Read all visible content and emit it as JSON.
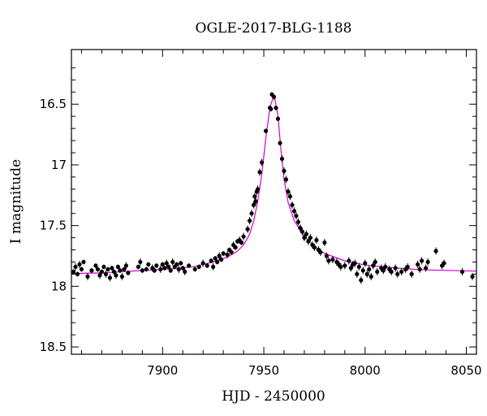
{
  "colors": {
    "model_line": "#d400d4",
    "points": "#000000"
  },
  "chart_data": {
    "type": "scatter",
    "title": "OGLE-2017-BLG-1188",
    "xlabel": "HJD - 2450000",
    "ylabel": "I magnitude",
    "xlim": [
      7855,
      8055
    ],
    "ylim": [
      18.56,
      16.05
    ],
    "y_inverted": true,
    "grid": false,
    "xticks": [
      7900,
      7950,
      8000,
      8050
    ],
    "xtick_labels": [
      "7900",
      "7950",
      "8000",
      "8050"
    ],
    "yticks": [
      16.5,
      17,
      17.5,
      18,
      18.5
    ],
    "ytick_labels": [
      "16.5",
      "17",
      "17.5",
      "18",
      "18.5"
    ],
    "series": [
      {
        "kind": "model",
        "points": [
          [
            7855,
            17.895
          ],
          [
            7870,
            17.89
          ],
          [
            7890,
            17.87
          ],
          [
            7905,
            17.855
          ],
          [
            7915,
            17.84
          ],
          [
            7925,
            17.8
          ],
          [
            7932,
            17.76
          ],
          [
            7937,
            17.71
          ],
          [
            7940,
            17.66
          ],
          [
            7943,
            17.57
          ],
          [
            7945,
            17.46
          ],
          [
            7947,
            17.3
          ],
          [
            7949,
            17.08
          ],
          [
            7951,
            16.78
          ],
          [
            7953,
            16.53
          ],
          [
            7954.5,
            16.45
          ],
          [
            7955.5,
            16.46
          ],
          [
            7957,
            16.6
          ],
          [
            7958.5,
            16.88
          ],
          [
            7960,
            17.12
          ],
          [
            7962,
            17.31
          ],
          [
            7965,
            17.46
          ],
          [
            7970,
            17.59
          ],
          [
            7975,
            17.67
          ],
          [
            7980,
            17.73
          ],
          [
            7990,
            17.79
          ],
          [
            8000,
            17.825
          ],
          [
            8015,
            17.85
          ],
          [
            8030,
            17.865
          ],
          [
            8055,
            17.875
          ]
        ]
      },
      {
        "kind": "data",
        "points": [
          [
            7856,
            17.88,
            0.02
          ],
          [
            7857,
            17.84,
            0.03
          ],
          [
            7858,
            17.9,
            0.02
          ],
          [
            7859,
            17.82,
            0.03
          ],
          [
            7860,
            17.86,
            0.02
          ],
          [
            7861,
            17.8,
            0.02
          ],
          [
            7863,
            17.92,
            0.03
          ],
          [
            7865,
            17.87,
            0.02
          ],
          [
            7867,
            17.83,
            0.02
          ],
          [
            7868,
            17.86,
            0.02
          ],
          [
            7869,
            17.91,
            0.03
          ],
          [
            7870,
            17.88,
            0.02
          ],
          [
            7871,
            17.84,
            0.02
          ],
          [
            7872,
            17.9,
            0.03
          ],
          [
            7873,
            17.86,
            0.02
          ],
          [
            7874,
            17.93,
            0.03
          ],
          [
            7875,
            17.85,
            0.02
          ],
          [
            7876,
            17.88,
            0.02
          ],
          [
            7877,
            17.91,
            0.03
          ],
          [
            7878,
            17.84,
            0.02
          ],
          [
            7879,
            17.87,
            0.02
          ],
          [
            7880,
            17.92,
            0.03
          ],
          [
            7881,
            17.86,
            0.02
          ],
          [
            7882,
            17.83,
            0.03
          ],
          [
            7883,
            17.89,
            0.02
          ],
          [
            7888,
            17.84,
            0.02
          ],
          [
            7889,
            17.8,
            0.03
          ],
          [
            7890,
            17.87,
            0.02
          ],
          [
            7892,
            17.86,
            0.02
          ],
          [
            7893,
            17.82,
            0.02
          ],
          [
            7895,
            17.85,
            0.03
          ],
          [
            7896,
            17.87,
            0.02
          ],
          [
            7897,
            17.83,
            0.02
          ],
          [
            7899,
            17.86,
            0.03
          ],
          [
            7900,
            17.82,
            0.02
          ],
          [
            7901,
            17.85,
            0.02
          ],
          [
            7902,
            17.81,
            0.03
          ],
          [
            7903,
            17.84,
            0.02
          ],
          [
            7904,
            17.87,
            0.02
          ],
          [
            7905,
            17.8,
            0.03
          ],
          [
            7906,
            17.84,
            0.02
          ],
          [
            7907,
            17.82,
            0.02
          ],
          [
            7908,
            17.86,
            0.03
          ],
          [
            7909,
            17.81,
            0.02
          ],
          [
            7910,
            17.85,
            0.02
          ],
          [
            7911,
            17.88,
            0.03
          ],
          [
            7913,
            17.83,
            0.02
          ],
          [
            7916,
            17.86,
            0.02
          ],
          [
            7918,
            17.84,
            0.02
          ],
          [
            7920,
            17.81,
            0.03
          ],
          [
            7922,
            17.83,
            0.02
          ],
          [
            7924,
            17.79,
            0.02
          ],
          [
            7925,
            17.84,
            0.03
          ],
          [
            7926,
            17.77,
            0.02
          ],
          [
            7927,
            17.8,
            0.02
          ],
          [
            7928,
            17.75,
            0.03
          ],
          [
            7929,
            17.78,
            0.02
          ],
          [
            7930,
            17.73,
            0.02
          ],
          [
            7932,
            17.74,
            0.03
          ],
          [
            7933,
            17.7,
            0.02
          ],
          [
            7934,
            17.72,
            0.02
          ],
          [
            7935,
            17.66,
            0.03
          ],
          [
            7936,
            17.68,
            0.02
          ],
          [
            7937,
            17.63,
            0.02
          ],
          [
            7938,
            17.62,
            0.03
          ],
          [
            7939,
            17.64,
            0.02
          ],
          [
            7940,
            17.59,
            0.03
          ],
          [
            7942,
            17.53,
            0.03
          ],
          [
            7943,
            17.46,
            0.03
          ],
          [
            7944,
            17.4,
            0.03
          ],
          [
            7945,
            17.33,
            0.03
          ],
          [
            7945.5,
            17.26,
            0.03
          ],
          [
            7946,
            17.3,
            0.03
          ],
          [
            7946.5,
            17.22,
            0.03
          ],
          [
            7947,
            17.2,
            0.03
          ],
          [
            7948,
            17.06,
            0.03
          ],
          [
            7949,
            16.98,
            0.03
          ],
          [
            7951,
            16.72,
            0.02
          ],
          [
            7953,
            16.53,
            0.02
          ],
          [
            7953.5,
            16.54,
            0.02
          ],
          [
            7954,
            16.42,
            0.02
          ],
          [
            7955,
            16.44,
            0.02
          ],
          [
            7956,
            16.53,
            0.02
          ],
          [
            7957,
            16.62,
            0.02
          ],
          [
            7958,
            16.82,
            0.02
          ],
          [
            7959,
            16.95,
            0.03
          ],
          [
            7960,
            17.05,
            0.03
          ],
          [
            7961,
            17.12,
            0.03
          ],
          [
            7962,
            17.22,
            0.03
          ],
          [
            7963,
            17.26,
            0.03
          ],
          [
            7964,
            17.33,
            0.03
          ],
          [
            7965,
            17.38,
            0.03
          ],
          [
            7966,
            17.42,
            0.03
          ],
          [
            7967,
            17.47,
            0.03
          ],
          [
            7968,
            17.52,
            0.03
          ],
          [
            7969,
            17.55,
            0.03
          ],
          [
            7970,
            17.6,
            0.03
          ],
          [
            7971,
            17.57,
            0.03
          ],
          [
            7972,
            17.63,
            0.03
          ],
          [
            7973,
            17.6,
            0.03
          ],
          [
            7974,
            17.66,
            0.03
          ],
          [
            7975,
            17.68,
            0.03
          ],
          [
            7976,
            17.62,
            0.03
          ],
          [
            7977,
            17.7,
            0.03
          ],
          [
            7978,
            17.72,
            0.03
          ],
          [
            7980,
            17.64,
            0.03
          ],
          [
            7981,
            17.75,
            0.03
          ],
          [
            7982,
            17.79,
            0.03
          ],
          [
            7984,
            17.78,
            0.03
          ],
          [
            7986,
            17.8,
            0.03
          ],
          [
            7987,
            17.82,
            0.03
          ],
          [
            7988,
            17.84,
            0.03
          ],
          [
            7990,
            17.83,
            0.03
          ],
          [
            7992,
            17.79,
            0.03
          ],
          [
            7993,
            17.85,
            0.03
          ],
          [
            7994,
            17.82,
            0.03
          ],
          [
            7995,
            17.81,
            0.03
          ],
          [
            7996,
            17.9,
            0.03
          ],
          [
            7997,
            17.84,
            0.03
          ],
          [
            7998,
            17.95,
            0.03
          ],
          [
            7999,
            17.87,
            0.03
          ],
          [
            8000,
            17.81,
            0.03
          ],
          [
            8001,
            17.9,
            0.03
          ],
          [
            8002,
            17.86,
            0.03
          ],
          [
            8003,
            17.92,
            0.03
          ],
          [
            8004,
            17.83,
            0.03
          ],
          [
            8005,
            17.8,
            0.03
          ],
          [
            8006,
            17.88,
            0.03
          ],
          [
            8008,
            17.85,
            0.03
          ],
          [
            8009,
            17.87,
            0.03
          ],
          [
            8010,
            17.84,
            0.03
          ],
          [
            8012,
            17.86,
            0.03
          ],
          [
            8013,
            17.88,
            0.03
          ],
          [
            8015,
            17.85,
            0.03
          ],
          [
            8016,
            17.9,
            0.03
          ],
          [
            8018,
            17.88,
            0.03
          ],
          [
            8020,
            17.86,
            0.03
          ],
          [
            8021,
            17.84,
            0.03
          ],
          [
            8023,
            17.9,
            0.03
          ],
          [
            8026,
            17.82,
            0.03
          ],
          [
            8027,
            17.86,
            0.03
          ],
          [
            8028,
            17.79,
            0.03
          ],
          [
            8030,
            17.85,
            0.03
          ],
          [
            8031,
            17.8,
            0.03
          ],
          [
            8035,
            17.71,
            0.03
          ],
          [
            8038,
            17.83,
            0.03
          ],
          [
            8039,
            17.81,
            0.03
          ],
          [
            8048,
            17.88,
            0.03
          ],
          [
            8053,
            17.92,
            0.03
          ]
        ]
      }
    ]
  }
}
